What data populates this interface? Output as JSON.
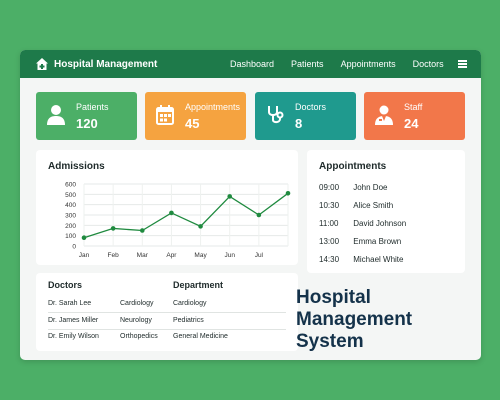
{
  "header": {
    "title": "Hospital Management",
    "nav": [
      "Dashboard",
      "Patients",
      "Appointments",
      "Doctors"
    ]
  },
  "stats": [
    {
      "label": "Patients",
      "value": "120",
      "color": "#4caf67",
      "icon": "person-icon"
    },
    {
      "label": "Appointments",
      "value": "45",
      "color": "#f5a340",
      "icon": "calendar-icon"
    },
    {
      "label": "Doctors",
      "value": "8",
      "color": "#1f9a8e",
      "icon": "stethoscope-icon"
    },
    {
      "label": "Staff",
      "value": "24",
      "color": "#f2774a",
      "icon": "staff-icon"
    }
  ],
  "admissions": {
    "title": "Admissions",
    "chart_data": {
      "type": "line",
      "title": "Admissions",
      "categories": [
        "Jan",
        "Feb",
        "Mar",
        "Apr",
        "May",
        "Jun",
        "Jul",
        ""
      ],
      "values": [
        80,
        170,
        150,
        320,
        190,
        480,
        300,
        510
      ],
      "ylim": [
        0,
        600
      ],
      "yticks": [
        0,
        100,
        200,
        300,
        400,
        500,
        600
      ],
      "color": "#1f8a3f",
      "grid": true
    }
  },
  "appointments": {
    "title": "Appointments",
    "rows": [
      {
        "time": "09:00",
        "name": "John Doe"
      },
      {
        "time": "10:30",
        "name": "Alice Smith"
      },
      {
        "time": "11:00",
        "name": "David Johnson"
      },
      {
        "time": "13:00",
        "name": "Emma Brown"
      },
      {
        "time": "14:30",
        "name": "Michael White"
      }
    ]
  },
  "doctors_table": {
    "headers": [
      "Doctors",
      "Department"
    ],
    "rows": [
      {
        "doctor": "Dr. Sarah Lee",
        "specialty": "Cardiology",
        "department": "Cardiology"
      },
      {
        "doctor": "Dr. James Miller",
        "specialty": "Neurology",
        "department": "Pediatrics"
      },
      {
        "doctor": "Dr. Emily Wilson",
        "specialty": "Orthopedics",
        "department": "General Medicine"
      }
    ]
  },
  "hero_title": [
    "Hospital",
    "Management",
    "System"
  ]
}
